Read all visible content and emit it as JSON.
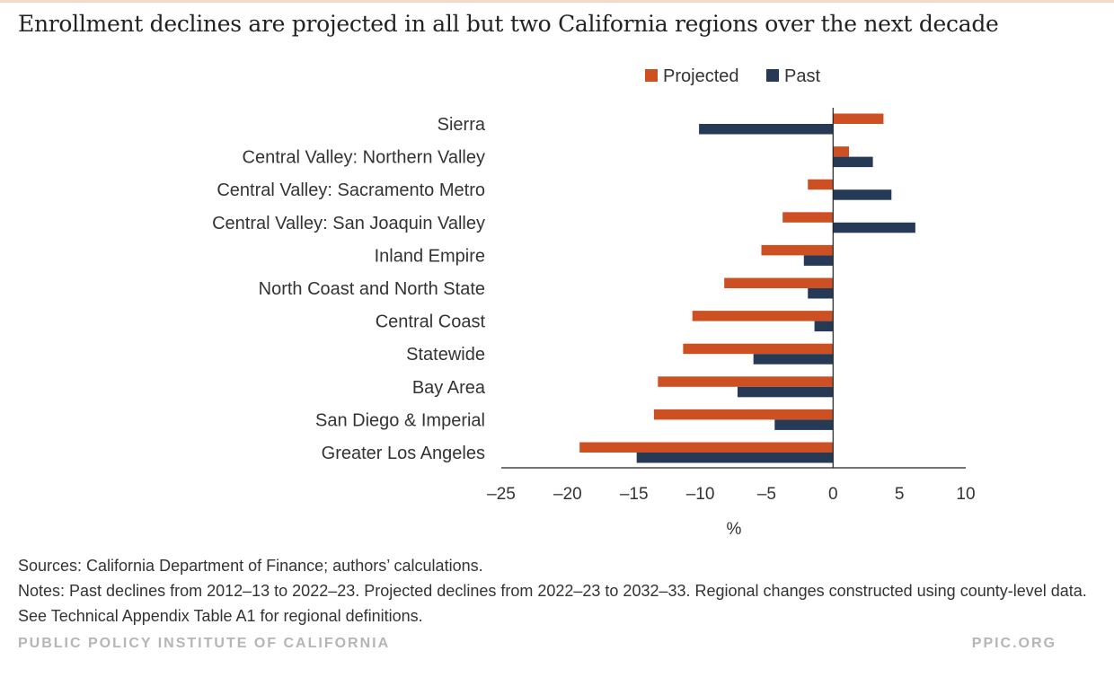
{
  "title": "Enrollment declines are projected in all but two California regions over the next decade",
  "chart_data": {
    "type": "bar",
    "orientation": "horizontal",
    "categories": [
      "Sierra",
      "Central Valley: Northern Valley",
      "Central Valley: Sacramento Metro",
      "Central Valley: San Joaquin Valley",
      "Inland Empire",
      "North Coast and North State",
      "Central Coast",
      "Statewide",
      "Bay Area",
      "San Diego & Imperial",
      "Greater Los Angeles"
    ],
    "series": [
      {
        "name": "Projected",
        "color": "#cc5021",
        "values": [
          3.8,
          1.2,
          -1.9,
          -3.8,
          -5.4,
          -8.2,
          -10.6,
          -11.3,
          -13.2,
          -13.5,
          -19.1
        ]
      },
      {
        "name": "Past",
        "color": "#263a56",
        "values": [
          -10.1,
          3.0,
          4.4,
          6.2,
          -2.2,
          -1.9,
          -1.4,
          -6.0,
          -7.2,
          -4.4,
          -14.8
        ]
      }
    ],
    "xlabel": "%",
    "xlim": [
      -25,
      10
    ],
    "xticks": [
      -25,
      -20,
      -15,
      -10,
      -5,
      0,
      5,
      10
    ],
    "xtick_labels": [
      "–25",
      "–20",
      "–15",
      "–10",
      "–5",
      "0",
      "5",
      "10"
    ],
    "legend_position": "top",
    "grid": false
  },
  "footer": {
    "sources": "Sources: California Department of Finance; authors’ calculations.",
    "notes": "Notes: Past declines from 2012–13 to 2022–23. Projected declines from 2022–23 to 2032–33. Regional changes constructed using county-level data. See Technical Appendix Table A1 for regional definitions.",
    "brand_left": "PUBLIC POLICY INSTITUTE OF CALIFORNIA",
    "brand_right": "PPIC.ORG"
  }
}
